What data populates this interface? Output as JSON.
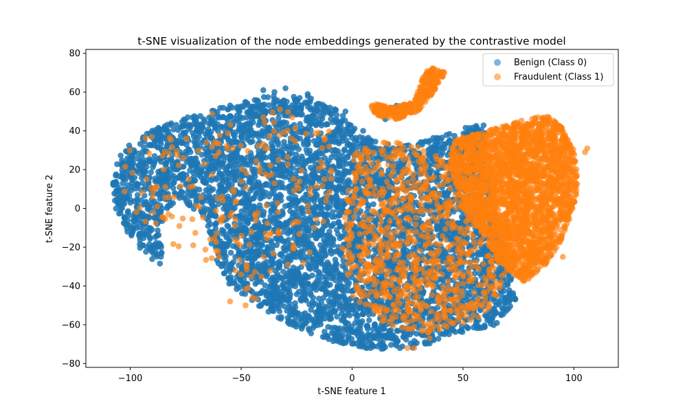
{
  "chart_data": {
    "type": "scatter",
    "title": "t-SNE visualization of the node embeddings generated by the contrastive model",
    "xlabel": "t-SNE feature 1",
    "ylabel": "t-SNE feature 2",
    "xlim": [
      -120,
      120
    ],
    "ylim": [
      -82,
      82
    ],
    "xticks": [
      -100,
      -50,
      0,
      50,
      100
    ],
    "yticks": [
      -80,
      -60,
      -40,
      -20,
      0,
      20,
      40,
      60,
      80
    ],
    "grid": false,
    "legend_position": "top-right",
    "series": [
      {
        "name": "Benign (Class 0)",
        "color": "#1f77b4",
        "regions": [
          {
            "shape": "polygon",
            "points": [
              [
                -108,
                12
              ],
              [
                -105,
                28
              ],
              [
                -95,
                38
              ],
              [
                -80,
                45
              ],
              [
                -60,
                52
              ],
              [
                -40,
                58
              ],
              [
                -20,
                58
              ],
              [
                -5,
                50
              ],
              [
                0,
                42
              ],
              [
                10,
                35
              ],
              [
                22,
                32
              ],
              [
                35,
                36
              ],
              [
                50,
                42
              ],
              [
                60,
                45
              ],
              [
                60,
                20
              ],
              [
                70,
                -30
              ],
              [
                75,
                -45
              ],
              [
                65,
                -60
              ],
              [
                45,
                -65
              ],
              [
                30,
                -72
              ],
              [
                12,
                -73
              ],
              [
                -5,
                -70
              ],
              [
                -25,
                -62
              ],
              [
                -40,
                -52
              ],
              [
                -55,
                -40
              ],
              [
                -62,
                -25
              ],
              [
                -65,
                -10
              ],
              [
                -70,
                -2
              ],
              [
                -78,
                5
              ],
              [
                -82,
                0
              ],
              [
                -86,
                -10
              ],
              [
                -85,
                -30
              ],
              [
                -92,
                -25
              ],
              [
                -100,
                -15
              ],
              [
                -107,
                0
              ]
            ],
            "count": 5200
          }
        ],
        "points_extra": [
          [
            -40,
            61
          ],
          [
            -35,
            60
          ],
          [
            -30,
            62
          ],
          [
            -20,
            59
          ],
          [
            -10,
            52
          ],
          [
            -3,
            50
          ],
          [
            20,
            53
          ],
          [
            15,
            46
          ],
          [
            5,
            40
          ],
          [
            58,
            -52
          ],
          [
            62,
            -58
          ],
          [
            45,
            -62
          ]
        ]
      },
      {
        "name": "Fraudulent (Class 1)",
        "color": "#ff7f0e",
        "regions": [
          {
            "shape": "polygon",
            "points": [
              [
                45,
                35
              ],
              [
                60,
                40
              ],
              [
                75,
                45
              ],
              [
                88,
                48
              ],
              [
                95,
                42
              ],
              [
                100,
                30
              ],
              [
                102,
                15
              ],
              [
                100,
                0
              ],
              [
                95,
                -15
              ],
              [
                88,
                -28
              ],
              [
                78,
                -38
              ],
              [
                68,
                -30
              ],
              [
                60,
                -15
              ],
              [
                50,
                0
              ],
              [
                44,
                20
              ]
            ],
            "count": 2600
          },
          {
            "shape": "polygon",
            "points": [
              [
                8,
                55
              ],
              [
                18,
                52
              ],
              [
                28,
                55
              ],
              [
                32,
                68
              ],
              [
                35,
                73
              ],
              [
                42,
                70
              ],
              [
                38,
                62
              ],
              [
                30,
                50
              ],
              [
                20,
                46
              ],
              [
                10,
                48
              ]
            ],
            "count": 320
          },
          {
            "shape": "polygon",
            "points": [
              [
                0,
                28
              ],
              [
                15,
                35
              ],
              [
                30,
                32
              ],
              [
                45,
                25
              ],
              [
                60,
                0
              ],
              [
                70,
                -35
              ],
              [
                60,
                -55
              ],
              [
                45,
                -62
              ],
              [
                30,
                -65
              ],
              [
                15,
                -60
              ],
              [
                0,
                -45
              ],
              [
                -5,
                -20
              ],
              [
                -2,
                10
              ]
            ],
            "count": 900
          },
          {
            "shape": "polygon",
            "points": [
              [
                -100,
                38
              ],
              [
                -80,
                45
              ],
              [
                -60,
                50
              ],
              [
                -40,
                55
              ],
              [
                -20,
                50
              ],
              [
                -5,
                40
              ],
              [
                -10,
                0
              ],
              [
                -25,
                -40
              ],
              [
                -40,
                -50
              ],
              [
                -60,
                -30
              ],
              [
                -85,
                -20
              ],
              [
                -105,
                5
              ]
            ],
            "count": 210
          }
        ],
        "points_extra": [
          [
            -45,
            -46
          ],
          [
            -48,
            -50
          ],
          [
            -55,
            -48
          ],
          [
            -60,
            -25
          ],
          [
            -40,
            47
          ],
          [
            -27,
            47
          ],
          [
            -38,
            31
          ],
          [
            25,
            -72
          ],
          [
            28,
            -72
          ],
          [
            35,
            -67
          ],
          [
            105,
            29
          ],
          [
            106,
            31
          ],
          [
            95,
            -25
          ],
          [
            90,
            -20
          ],
          [
            82,
            -28
          ]
        ]
      }
    ]
  }
}
